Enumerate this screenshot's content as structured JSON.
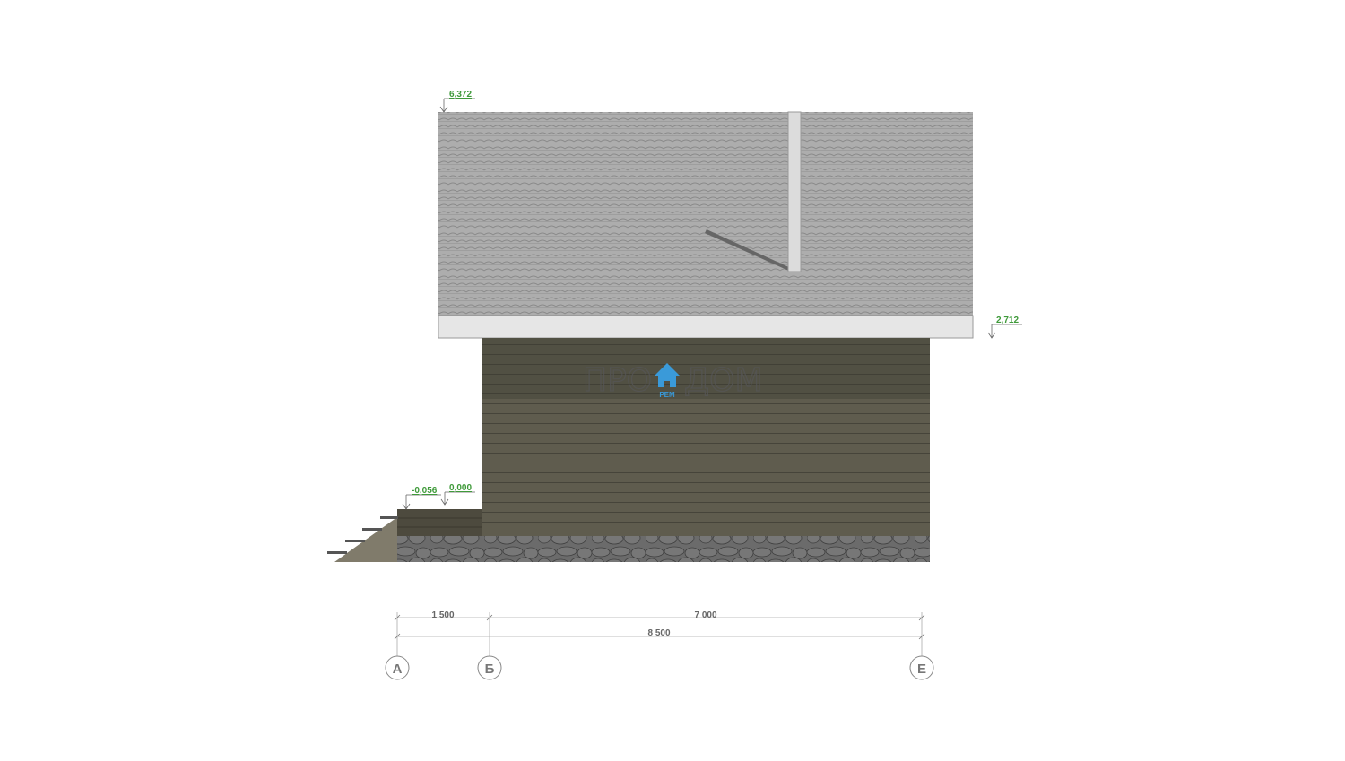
{
  "levels": {
    "ridge": "6,372",
    "eave": "2,712",
    "porch": "-0,056",
    "floor": "0,000"
  },
  "dimensions": {
    "porch_span": "1 500",
    "house_span": "7 000",
    "total": "8 500"
  },
  "axes": [
    "А",
    "Б",
    "Е"
  ],
  "watermark": {
    "left": "ПРО",
    "right": "ДОМ",
    "sub": "РЕМ",
    "accent": "#3a9ad9"
  },
  "colors": {
    "roof": "#a9a9a9",
    "wall": "#5e5b4d",
    "wall_top": "#4a473b",
    "stone": "#6a6a6a",
    "level_text": "#3f9a3a"
  }
}
